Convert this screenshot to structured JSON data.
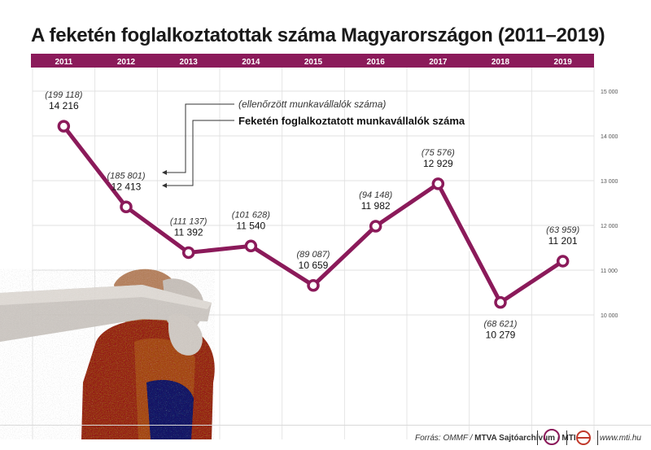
{
  "title": "A feketén foglalkoztatottak száma Magyarországon (2011–2019)",
  "accent_color": "#8b1a5a",
  "legend": {
    "checked_label": "(ellenőrzött munkavállalók száma)",
    "black_label": "Feketén foglalkoztatott munkavállalók száma"
  },
  "footer": {
    "source_prefix": "Forrás: OMMF /",
    "source_bold": "MTVA Sajtóarchívum / MTI",
    "website": "www.mti.hu"
  },
  "chart_data": {
    "type": "line",
    "title": "A feketén foglalkoztatottak száma Magyarországon (2011–2019)",
    "categories": [
      "2011",
      "2012",
      "2013",
      "2014",
      "2015",
      "2016",
      "2017",
      "2018",
      "2019"
    ],
    "series": [
      {
        "name": "Feketén foglalkoztatott munkavállalók száma",
        "values": [
          14216,
          12413,
          11392,
          11540,
          10659,
          11982,
          12929,
          10279,
          11201
        ],
        "labels": [
          "14 216",
          "12 413",
          "11 392",
          "11 540",
          "10 659",
          "11 982",
          "12 929",
          "10 279",
          "11 201"
        ]
      },
      {
        "name": "(ellenőrzött munkavállalók száma)",
        "values": [
          199118,
          185801,
          111137,
          101628,
          89087,
          94148,
          75576,
          68621,
          63959
        ],
        "labels": [
          "(199 118)",
          "(185 801)",
          "(111 137)",
          "(101 628)",
          "(89 087)",
          "(94 148)",
          "(75 576)",
          "(68 621)",
          "(63 959)"
        ]
      }
    ],
    "y_ticks": [
      "15 000",
      "14 000",
      "13 000",
      "12 000",
      "11 000",
      "10 000"
    ],
    "y_tick_values": [
      15000,
      14000,
      13000,
      12000,
      11000,
      10000
    ],
    "ylim": [
      9000,
      15000
    ],
    "grid": true,
    "line_color": "#8b1a5a"
  }
}
